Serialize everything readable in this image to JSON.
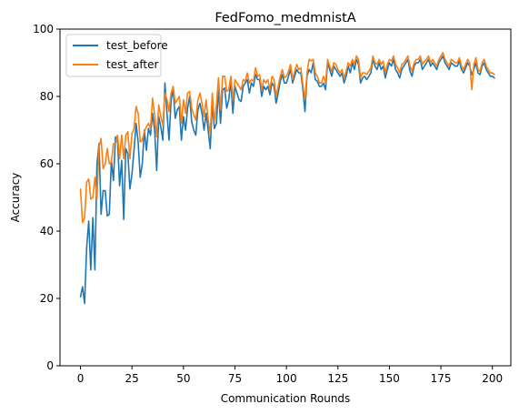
{
  "chart_data": {
    "type": "line",
    "title": "FedFomo_medmnistA",
    "xlabel": "Communication Rounds",
    "ylabel": "Accuracy",
    "xlim": [
      -9.95,
      208.95
    ],
    "ylim": [
      0,
      100
    ],
    "xticks": [
      0,
      25,
      50,
      75,
      100,
      125,
      150,
      175,
      200
    ],
    "yticks": [
      0,
      20,
      40,
      60,
      80,
      100
    ],
    "legend_position": "top-left",
    "grid": false,
    "series": [
      {
        "name": "test_before",
        "color": "#1f77b4",
        "values": [
          20.5,
          23.5,
          18.5,
          35,
          43,
          28.5,
          44,
          28.5,
          60,
          66,
          45,
          52,
          52,
          44.5,
          45,
          61,
          55,
          68,
          67,
          53.5,
          61,
          43.5,
          64.5,
          63,
          52.5,
          57,
          64,
          72,
          66.5,
          56,
          60,
          70,
          64,
          70.5,
          68.5,
          75,
          70,
          58,
          74,
          71,
          67,
          84,
          75,
          67,
          79,
          82,
          73.5,
          76,
          77,
          67,
          74,
          70,
          76.5,
          80,
          72.5,
          70,
          68.5,
          76,
          78,
          75,
          70,
          75,
          70,
          64.5,
          78,
          70.5,
          72,
          82,
          72,
          82,
          82.5,
          76.5,
          79,
          84.5,
          75,
          83,
          81,
          79,
          78.5,
          83,
          84,
          85,
          81,
          84,
          83,
          86.5,
          85,
          85,
          80,
          83,
          82,
          83,
          80.5,
          84,
          83,
          78,
          81,
          84.5,
          86.5,
          84,
          84,
          86,
          88,
          84,
          86,
          88,
          87,
          87,
          82,
          75.5,
          86,
          88,
          87,
          90,
          85,
          84.5,
          83,
          83,
          84,
          82,
          90,
          88,
          86,
          89,
          88,
          87,
          86,
          87,
          84,
          86,
          89,
          87,
          90,
          88,
          91,
          89.5,
          84,
          85.5,
          86,
          85,
          86,
          87,
          91,
          89,
          88,
          90,
          88,
          89,
          85.5,
          88,
          90,
          89,
          91,
          88,
          87,
          85.5,
          88,
          89,
          90,
          91,
          87.5,
          86,
          89,
          90,
          90,
          91,
          88,
          89,
          90,
          91,
          89,
          90,
          89,
          88,
          90,
          91,
          92,
          90,
          89,
          88,
          90,
          89.5,
          89,
          89,
          90.5,
          88,
          87,
          88.5,
          90,
          89,
          86.5,
          88,
          90,
          87,
          86.5,
          89,
          90,
          88,
          87,
          86,
          86,
          85.5
        ]
      },
      {
        "name": "test_after",
        "color": "#ff7f0e",
        "values": [
          52.5,
          42.5,
          44,
          54.5,
          55.5,
          49.5,
          50,
          56,
          49.5,
          65,
          67.5,
          58.5,
          60,
          64.5,
          60,
          60.5,
          66,
          66,
          68.5,
          61.5,
          68.5,
          61.5,
          68.5,
          69.5,
          61.5,
          69,
          70.5,
          77,
          75,
          66.5,
          67,
          69.5,
          71,
          72,
          70.5,
          79.5,
          74.5,
          68,
          77.5,
          74,
          71.5,
          81,
          79,
          75.5,
          81,
          83,
          78,
          79,
          80,
          72,
          79,
          75,
          81,
          81.5,
          76.5,
          74.5,
          73,
          79,
          81,
          78,
          74,
          79,
          73,
          69,
          81,
          72.5,
          77.5,
          85.5,
          76,
          86,
          86,
          81.5,
          82,
          86,
          79,
          85,
          84,
          83,
          82,
          85,
          84.5,
          87,
          84,
          85,
          84.5,
          88.5,
          86,
          86.5,
          82,
          85,
          84,
          85,
          82,
          86,
          85,
          80,
          83,
          86,
          88,
          85.5,
          86,
          87.5,
          89.5,
          85,
          87.5,
          89.5,
          88,
          88.5,
          83.5,
          79,
          87,
          91,
          90.5,
          91,
          87,
          86,
          84,
          84,
          86,
          84,
          91,
          89,
          87.5,
          90,
          89.5,
          88,
          87,
          88,
          85.5,
          87.5,
          90,
          89,
          91,
          89.5,
          92,
          91,
          85.5,
          87,
          87,
          86.5,
          87.5,
          88.5,
          92,
          90,
          89.5,
          91,
          89.5,
          90.5,
          87,
          89.5,
          91,
          90.5,
          92,
          89.5,
          88.5,
          87,
          89.5,
          90,
          91,
          92,
          89,
          87.5,
          90,
          91,
          91,
          92,
          89.5,
          90.5,
          91,
          92,
          90,
          91,
          90,
          89,
          91,
          92,
          93,
          91,
          90,
          89,
          91,
          90.5,
          90,
          90,
          91.5,
          89,
          88,
          89.5,
          91,
          90,
          82,
          89.5,
          91.5,
          88,
          87.5,
          90,
          91,
          89,
          88,
          87,
          87,
          86.5
        ]
      }
    ]
  }
}
